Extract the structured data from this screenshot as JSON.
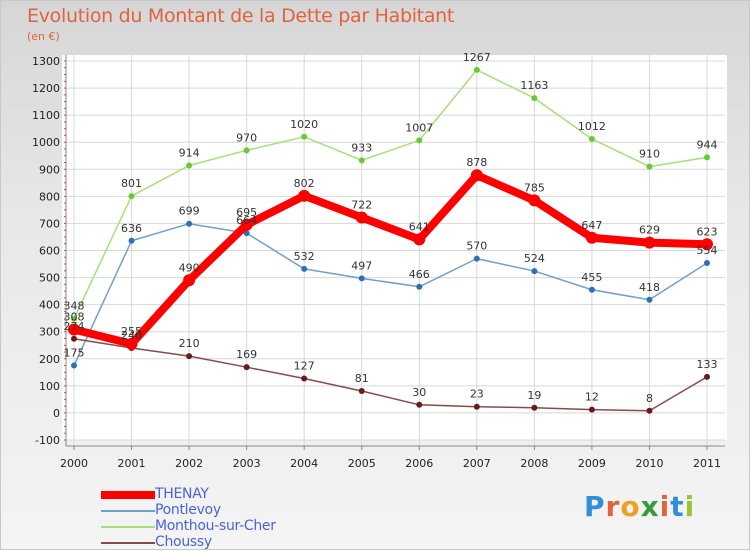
{
  "header": {
    "title": "Evolution du Montant de la Dette par Habitant",
    "subtitle": "(en €)"
  },
  "logo": {
    "text": "Proxiti",
    "letters": [
      {
        "ch": "P",
        "color": "#2f8fd8"
      },
      {
        "ch": "r",
        "color": "#e0633f"
      },
      {
        "ch": "o",
        "color": "#f0a020"
      },
      {
        "ch": "x",
        "color": "#3a9a3a"
      },
      {
        "ch": "i",
        "color": "#e0633f"
      },
      {
        "ch": "t",
        "color": "#2f8fd8"
      },
      {
        "ch": "i",
        "color": "#9ac23a"
      }
    ]
  },
  "chart_data": {
    "type": "line",
    "title": "Evolution du Montant de la Dette par Habitant",
    "ylabel": "(en €)",
    "xlabel": "",
    "ylim": [
      -100,
      1300
    ],
    "yticks": [
      -100,
      0,
      100,
      200,
      300,
      400,
      500,
      600,
      700,
      800,
      900,
      1000,
      1100,
      1200,
      1300
    ],
    "x": [
      "2000",
      "2001",
      "2002",
      "2003",
      "2004",
      "2005",
      "2006",
      "2007",
      "2008",
      "2009",
      "2010",
      "2011"
    ],
    "grid": true,
    "legend_position": "bottom-left",
    "series": [
      {
        "name": "THENAY",
        "color": "#ff0000",
        "marker_color": "#ff0000",
        "values": [
          308,
          255,
          490,
          695,
          802,
          722,
          641,
          878,
          785,
          647,
          629,
          623
        ]
      },
      {
        "name": "Pontlevoy",
        "color": "#6fa0cc",
        "marker_color": "#2f6fb8",
        "values": [
          175,
          636,
          699,
          664,
          532,
          497,
          466,
          570,
          524,
          455,
          418,
          554
        ]
      },
      {
        "name": "Monthou-sur-Cher",
        "color": "#a6df7a",
        "marker_color": "#66cc33",
        "values": [
          348,
          801,
          914,
          970,
          1020,
          933,
          1007,
          1267,
          1163,
          1012,
          910,
          944
        ]
      },
      {
        "name": "Choussy",
        "color": "#8a4a4a",
        "marker_color": "#6a1a1a",
        "values": [
          274,
          240,
          210,
          169,
          127,
          81,
          30,
          23,
          19,
          12,
          8,
          133
        ]
      }
    ]
  }
}
